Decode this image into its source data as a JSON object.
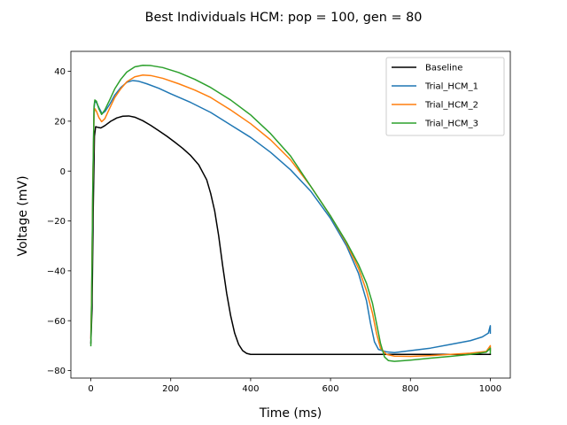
{
  "chart_data": {
    "type": "line",
    "title": "Best Individuals HCM: pop = 100, gen = 80",
    "xlabel": "Time (ms)",
    "ylabel": "Voltage (mV)",
    "xlim": [
      -50,
      1050
    ],
    "ylim": [
      -83,
      48
    ],
    "xticks": [
      0,
      200,
      400,
      600,
      800,
      1000
    ],
    "yticks": [
      -80,
      -60,
      -40,
      -20,
      0,
      20,
      40
    ],
    "xtick_labels": [
      "0",
      "200",
      "400",
      "600",
      "800",
      "1000"
    ],
    "ytick_labels": [
      "−80",
      "−60",
      "−40",
      "−20",
      "0",
      "20",
      "40"
    ],
    "grid": false,
    "legend_position": "top-right",
    "series": [
      {
        "name": "Baseline",
        "color": "#000000",
        "points": [
          [
            0,
            -69
          ],
          [
            3,
            -55
          ],
          [
            6,
            -15
          ],
          [
            9,
            14
          ],
          [
            12,
            17.8
          ],
          [
            18,
            17.5
          ],
          [
            25,
            17.3
          ],
          [
            35,
            18.2
          ],
          [
            50,
            20
          ],
          [
            65,
            21.3
          ],
          [
            80,
            22
          ],
          [
            95,
            22.1
          ],
          [
            110,
            21.6
          ],
          [
            130,
            20.2
          ],
          [
            150,
            18.3
          ],
          [
            170,
            16.2
          ],
          [
            190,
            14
          ],
          [
            210,
            11.6
          ],
          [
            230,
            9.1
          ],
          [
            250,
            6.2
          ],
          [
            270,
            2.5
          ],
          [
            290,
            -3.5
          ],
          [
            300,
            -9
          ],
          [
            310,
            -16
          ],
          [
            320,
            -26
          ],
          [
            330,
            -38
          ],
          [
            340,
            -49
          ],
          [
            350,
            -58
          ],
          [
            360,
            -65
          ],
          [
            370,
            -69.5
          ],
          [
            380,
            -72
          ],
          [
            390,
            -73.1
          ],
          [
            400,
            -73.5
          ],
          [
            450,
            -73.5
          ],
          [
            500,
            -73.5
          ],
          [
            600,
            -73.5
          ],
          [
            700,
            -73.5
          ],
          [
            800,
            -73.5
          ],
          [
            900,
            -73.5
          ],
          [
            1000,
            -73.5
          ]
        ]
      },
      {
        "name": "Trial_HCM_1",
        "color": "#1f77b4",
        "points": [
          [
            0,
            -67
          ],
          [
            2,
            -50
          ],
          [
            5,
            -5
          ],
          [
            8,
            25
          ],
          [
            10,
            28
          ],
          [
            14,
            27.5
          ],
          [
            20,
            25.5
          ],
          [
            28,
            23
          ],
          [
            36,
            24
          ],
          [
            48,
            27
          ],
          [
            60,
            30.5
          ],
          [
            75,
            33.5
          ],
          [
            90,
            35.6
          ],
          [
            105,
            36.3
          ],
          [
            120,
            36
          ],
          [
            140,
            35
          ],
          [
            170,
            33.2
          ],
          [
            200,
            31
          ],
          [
            250,
            27.5
          ],
          [
            300,
            23.5
          ],
          [
            350,
            18.5
          ],
          [
            400,
            13.5
          ],
          [
            450,
            7.5
          ],
          [
            500,
            0.5
          ],
          [
            550,
            -8
          ],
          [
            600,
            -19
          ],
          [
            640,
            -30
          ],
          [
            670,
            -41
          ],
          [
            690,
            -52
          ],
          [
            700,
            -61
          ],
          [
            710,
            -68.5
          ],
          [
            720,
            -71.5
          ],
          [
            740,
            -72.5
          ],
          [
            760,
            -72.8
          ],
          [
            800,
            -72
          ],
          [
            850,
            -71
          ],
          [
            900,
            -69.5
          ],
          [
            950,
            -68
          ],
          [
            980,
            -66.5
          ],
          [
            995,
            -65
          ],
          [
            1000,
            -62
          ],
          [
            1000,
            -65
          ]
        ]
      },
      {
        "name": "Trial_HCM_2",
        "color": "#ff7f0e",
        "points": [
          [
            0,
            -67
          ],
          [
            2,
            -50
          ],
          [
            5,
            -5
          ],
          [
            8,
            23
          ],
          [
            10,
            25
          ],
          [
            14,
            24
          ],
          [
            20,
            21.5
          ],
          [
            27,
            19.8
          ],
          [
            35,
            21
          ],
          [
            48,
            25.5
          ],
          [
            60,
            29.5
          ],
          [
            75,
            33
          ],
          [
            90,
            35.8
          ],
          [
            110,
            37.8
          ],
          [
            130,
            38.5
          ],
          [
            150,
            38.3
          ],
          [
            180,
            37.2
          ],
          [
            220,
            35
          ],
          [
            260,
            32.5
          ],
          [
            300,
            29.5
          ],
          [
            350,
            24.5
          ],
          [
            400,
            19
          ],
          [
            450,
            12.5
          ],
          [
            500,
            4.5
          ],
          [
            550,
            -6
          ],
          [
            600,
            -18
          ],
          [
            640,
            -29
          ],
          [
            670,
            -39
          ],
          [
            690,
            -48
          ],
          [
            705,
            -57
          ],
          [
            715,
            -65
          ],
          [
            725,
            -71
          ],
          [
            740,
            -73.5
          ],
          [
            760,
            -74.2
          ],
          [
            800,
            -74.3
          ],
          [
            850,
            -74
          ],
          [
            900,
            -73.5
          ],
          [
            950,
            -73
          ],
          [
            990,
            -72.3
          ],
          [
            1000,
            -70
          ],
          [
            1000,
            -72
          ]
        ]
      },
      {
        "name": "Trial_HCM_3",
        "color": "#2ca02c",
        "points": [
          [
            0,
            -70
          ],
          [
            2,
            -52
          ],
          [
            5,
            -5
          ],
          [
            8,
            26
          ],
          [
            10,
            28.5
          ],
          [
            14,
            28
          ],
          [
            20,
            25
          ],
          [
            27,
            22.7
          ],
          [
            35,
            24.5
          ],
          [
            48,
            28.8
          ],
          [
            60,
            33
          ],
          [
            75,
            36.8
          ],
          [
            90,
            39.7
          ],
          [
            110,
            41.8
          ],
          [
            130,
            42.4
          ],
          [
            150,
            42.3
          ],
          [
            180,
            41.5
          ],
          [
            220,
            39.5
          ],
          [
            260,
            36.8
          ],
          [
            300,
            33.5
          ],
          [
            350,
            28.5
          ],
          [
            400,
            22.5
          ],
          [
            450,
            15
          ],
          [
            500,
            6
          ],
          [
            550,
            -6
          ],
          [
            600,
            -18
          ],
          [
            640,
            -28.5
          ],
          [
            670,
            -37.5
          ],
          [
            690,
            -45
          ],
          [
            705,
            -53
          ],
          [
            715,
            -61
          ],
          [
            725,
            -69
          ],
          [
            735,
            -74.5
          ],
          [
            745,
            -76
          ],
          [
            760,
            -76.3
          ],
          [
            800,
            -75.8
          ],
          [
            850,
            -75
          ],
          [
            900,
            -74.3
          ],
          [
            950,
            -73.5
          ],
          [
            990,
            -72.6
          ],
          [
            1000,
            -71
          ],
          [
            1000,
            -73
          ]
        ]
      }
    ]
  }
}
